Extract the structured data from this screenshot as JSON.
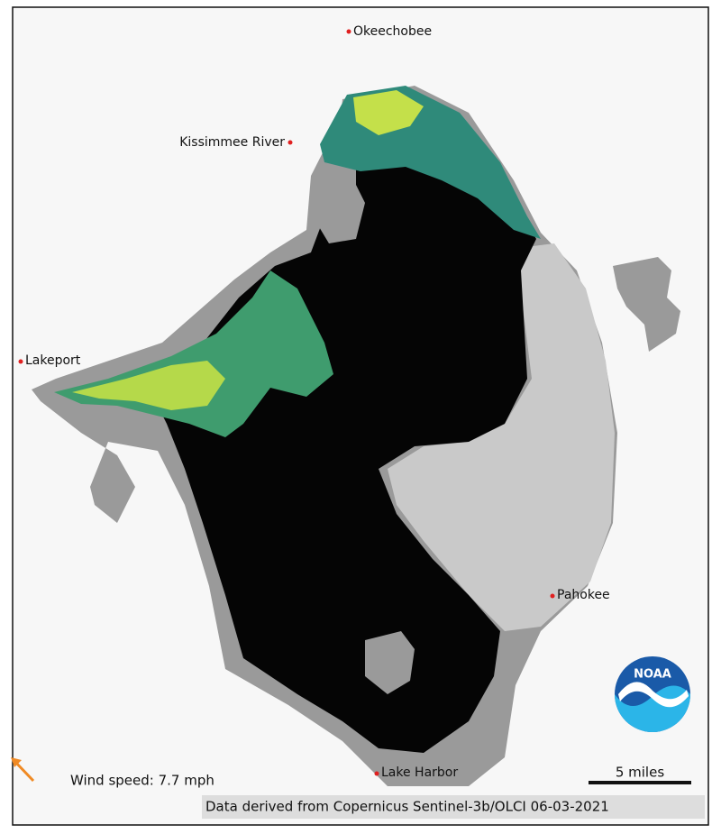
{
  "places": [
    {
      "label": "Okeechobee"
    },
    {
      "label": "Kissimmee River"
    },
    {
      "label": "Lakeport"
    },
    {
      "label": "Pahokee"
    },
    {
      "label": "Lake Harbor"
    }
  ],
  "wind": "Wind speed: 7.7 mph",
  "scale_bar": "5 miles",
  "credit": "Data derived from Copernicus Sentinel-3b/OLCI 06-03-2021",
  "logo": "NOAA"
}
